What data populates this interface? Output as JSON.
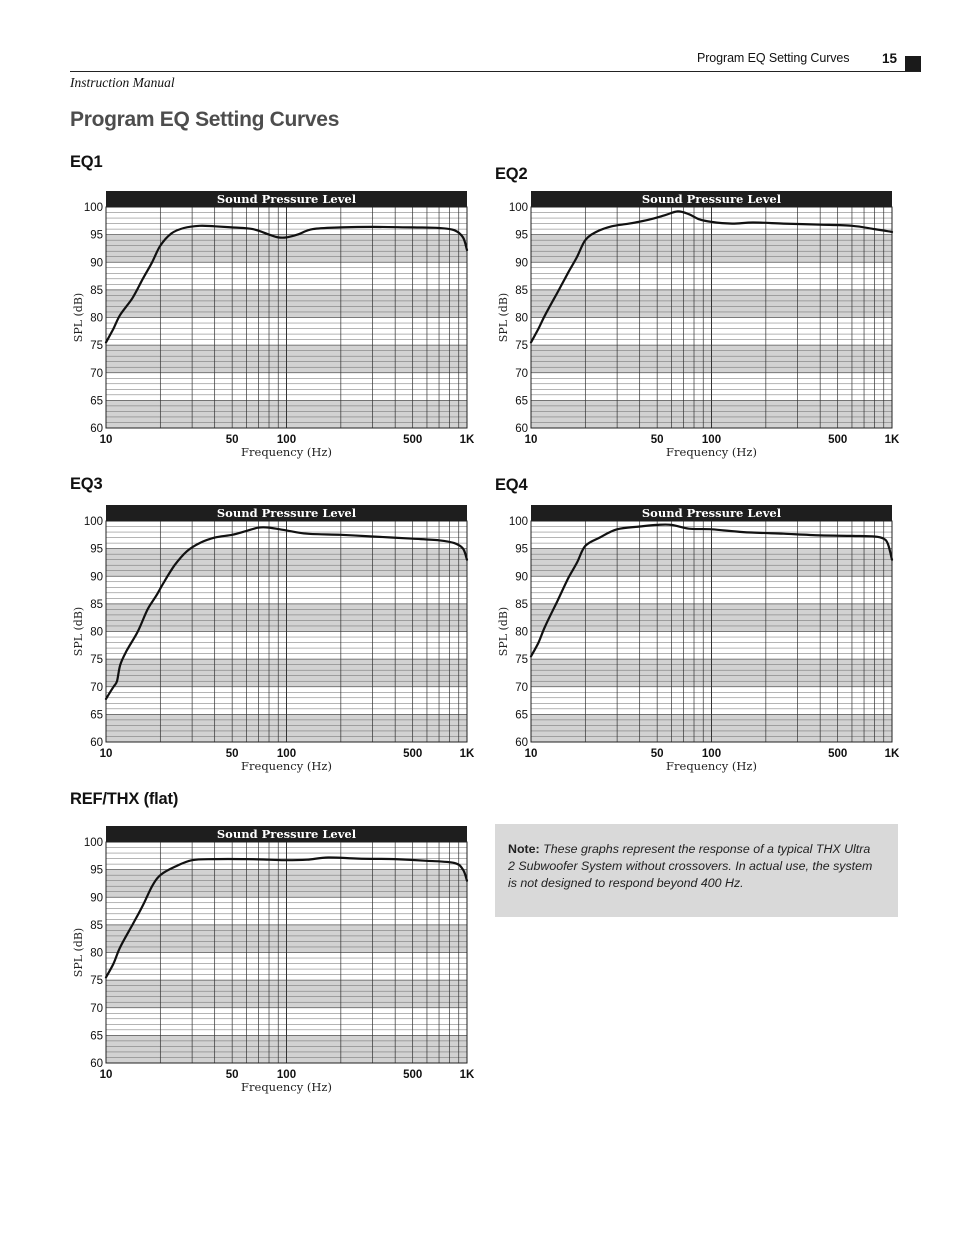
{
  "header": {
    "section_title": "Program EQ Setting Curves",
    "page_number": "15",
    "manual_label": "Instruction Manual"
  },
  "page_title": "Program EQ Setting Curves",
  "note": {
    "label": "Note:",
    "text": "These graphs represent the response of a typical THX Ultra 2 Subwoofer System without crossovers. In actual use, the system is not designed to respond beyond 400 Hz."
  },
  "colors": {
    "band": "#d2d2d2",
    "banner": "#1e1e1e",
    "curve": "#111111",
    "note_bg": "#d9d9d9"
  },
  "chart_data": [
    {
      "type": "line",
      "panel_title": "EQ1",
      "title": "Sound Pressure Level",
      "xlabel": "Frequency (Hz)",
      "ylabel": "SPL (dB)",
      "xscale": "log",
      "xlim": [
        10,
        1000
      ],
      "ylim": [
        60,
        100
      ],
      "xticks": [
        10,
        50,
        100,
        500,
        1000
      ],
      "xtick_labels": [
        "10",
        "50",
        "100",
        "500",
        "1K"
      ],
      "yticks": [
        100,
        95,
        90,
        85,
        80,
        75,
        70,
        65,
        60
      ],
      "x": [
        10,
        11,
        12,
        14,
        16,
        18,
        20,
        23,
        27,
        33,
        40,
        50,
        65,
        80,
        90,
        100,
        115,
        140,
        200,
        300,
        500,
        700,
        850,
        950,
        1000
      ],
      "y": [
        75.5,
        78,
        80.5,
        83.5,
        87,
        90,
        93,
        95.2,
        96.2,
        96.6,
        96.5,
        96.3,
        96,
        95,
        94.5,
        94.5,
        95,
        96,
        96.3,
        96.4,
        96.3,
        96.2,
        95.8,
        94.5,
        92.2
      ]
    },
    {
      "type": "line",
      "panel_title": "EQ2",
      "title": "Sound Pressure Level",
      "xlabel": "Frequency (Hz)",
      "ylabel": "SPL (dB)",
      "xscale": "log",
      "xlim": [
        10,
        1000
      ],
      "ylim": [
        60,
        100
      ],
      "xticks": [
        10,
        50,
        100,
        500,
        1000
      ],
      "xtick_labels": [
        "10",
        "50",
        "100",
        "500",
        "1K"
      ],
      "yticks": [
        100,
        95,
        90,
        85,
        80,
        75,
        70,
        65,
        60
      ],
      "x": [
        10,
        11,
        12,
        14,
        16,
        18,
        20,
        23,
        28,
        35,
        45,
        55,
        65,
        75,
        85,
        100,
        130,
        170,
        250,
        400,
        600,
        800,
        1000
      ],
      "y": [
        75.5,
        78,
        80.5,
        84.5,
        88,
        91,
        94,
        95.5,
        96.5,
        97,
        97.7,
        98.5,
        99.2,
        98.7,
        97.8,
        97.3,
        97,
        97.2,
        97,
        96.8,
        96.6,
        96,
        95.5
      ]
    },
    {
      "type": "line",
      "panel_title": "EQ3",
      "title": "Sound Pressure Level",
      "xlabel": "Frequency (Hz)",
      "ylabel": "SPL (dB)",
      "xscale": "log",
      "xlim": [
        10,
        1000
      ],
      "ylim": [
        60,
        100
      ],
      "xticks": [
        10,
        50,
        100,
        500,
        1000
      ],
      "xtick_labels": [
        "10",
        "50",
        "100",
        "500",
        "1K"
      ],
      "yticks": [
        100,
        95,
        90,
        85,
        80,
        75,
        70,
        65,
        60
      ],
      "x": [
        10,
        11,
        11.5,
        12,
        13,
        15,
        17,
        19,
        21,
        24,
        28,
        33,
        40,
        50,
        60,
        70,
        80,
        100,
        130,
        200,
        300,
        500,
        700,
        850,
        950,
        1000
      ],
      "y": [
        67.8,
        70,
        71,
        74,
        76.5,
        80,
        84,
        86.5,
        89,
        92,
        94.5,
        96,
        97,
        97.5,
        98.2,
        98.8,
        98.8,
        98.3,
        97.7,
        97.5,
        97.2,
        96.8,
        96.5,
        96,
        95,
        93
      ]
    },
    {
      "type": "line",
      "panel_title": "EQ4",
      "title": "Sound Pressure Level",
      "xlabel": "Frequency (Hz)",
      "ylabel": "SPL (dB)",
      "xscale": "log",
      "xlim": [
        10,
        1000
      ],
      "ylim": [
        60,
        100
      ],
      "xticks": [
        10,
        50,
        100,
        500,
        1000
      ],
      "xtick_labels": [
        "10",
        "50",
        "100",
        "500",
        "1K"
      ],
      "yticks": [
        100,
        95,
        90,
        85,
        80,
        75,
        70,
        65,
        60
      ],
      "x": [
        10,
        11,
        12,
        14,
        16,
        18,
        20,
        24,
        30,
        40,
        50,
        60,
        75,
        100,
        150,
        250,
        400,
        600,
        800,
        900,
        950,
        1000
      ],
      "y": [
        75.5,
        78,
        81,
        85.5,
        89.5,
        92.5,
        95.5,
        97,
        98.5,
        99,
        99.3,
        99.3,
        98.6,
        98.5,
        98,
        97.7,
        97.4,
        97.3,
        97.2,
        96.8,
        95.8,
        93
      ]
    },
    {
      "type": "line",
      "panel_title": "REF/THX (flat)",
      "title": "Sound Pressure Level",
      "xlabel": "Frequency (Hz)",
      "ylabel": "SPL (dB)",
      "xscale": "log",
      "xlim": [
        10,
        1000
      ],
      "ylim": [
        60,
        100
      ],
      "xticks": [
        10,
        50,
        100,
        500,
        1000
      ],
      "xtick_labels": [
        "10",
        "50",
        "100",
        "500",
        "1K"
      ],
      "yticks": [
        100,
        95,
        90,
        85,
        80,
        75,
        70,
        65,
        60
      ],
      "x": [
        10,
        11,
        12,
        14,
        16,
        18,
        20,
        24,
        30,
        40,
        60,
        80,
        100,
        130,
        170,
        250,
        400,
        600,
        850,
        950,
        1000
      ],
      "y": [
        75.5,
        78,
        81,
        85,
        88.5,
        92,
        94,
        95.5,
        96.7,
        96.9,
        96.9,
        96.8,
        96.7,
        96.8,
        97.2,
        97,
        96.9,
        96.6,
        96.2,
        95,
        93
      ]
    }
  ]
}
